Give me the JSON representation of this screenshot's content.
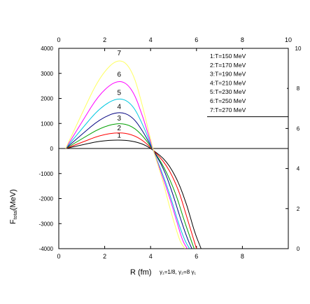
{
  "chart_data": {
    "type": "line",
    "xlabel": "R (fm)",
    "ylabel": "F_total(MeV)",
    "ylabel_main": "F",
    "ylabel_sub": "total",
    "ylabel_unit": "(MeV)",
    "annotation": "γ₁=1/8, γ₂=8 γ₁",
    "xlim": [
      0,
      10
    ],
    "ylim": [
      -4000,
      4000
    ],
    "x_ticks": [
      "0",
      "2",
      "4",
      "6",
      "8",
      "10"
    ],
    "x_ticks_bottom": [
      "0",
      "2",
      "4",
      "6",
      "8"
    ],
    "y_ticks": [
      "4000",
      "3000",
      "2000",
      "1000",
      "0",
      "-1000",
      "-2000",
      "-3000",
      "-4000"
    ],
    "right_ticks": [
      "10",
      "8",
      "6",
      "4",
      "2",
      "0"
    ],
    "grid": false,
    "legend_position": "top-right",
    "series": [
      {
        "name": "1:T=150 MeV",
        "label": "1",
        "color": "#000000",
        "points": [
          [
            0.3,
            0
          ],
          [
            1,
            140
          ],
          [
            1.8,
            300
          ],
          [
            2.6,
            350
          ],
          [
            3.2,
            300
          ],
          [
            3.7,
            170
          ],
          [
            4.1,
            -50
          ],
          [
            4.7,
            -500
          ],
          [
            5.2,
            -1300
          ],
          [
            5.6,
            -2300
          ],
          [
            5.9,
            -3300
          ],
          [
            6.2,
            -4000
          ]
        ]
      },
      {
        "name": "2:T=170 MeV",
        "label": "2",
        "color": "#ff0000",
        "points": [
          [
            0.3,
            0
          ],
          [
            1,
            240
          ],
          [
            1.8,
            530
          ],
          [
            2.6,
            650
          ],
          [
            3.2,
            560
          ],
          [
            3.7,
            300
          ],
          [
            4.1,
            -50
          ],
          [
            4.7,
            -650
          ],
          [
            5.2,
            -1600
          ],
          [
            5.5,
            -2500
          ],
          [
            5.8,
            -3400
          ],
          [
            6.0,
            -4000
          ]
        ]
      },
      {
        "name": "3:T=190 MeV",
        "label": "3",
        "color": "#00a000",
        "points": [
          [
            0.3,
            0
          ],
          [
            1,
            380
          ],
          [
            1.8,
            820
          ],
          [
            2.6,
            1030
          ],
          [
            3.2,
            900
          ],
          [
            3.7,
            470
          ],
          [
            4.1,
            -50
          ],
          [
            4.6,
            -750
          ],
          [
            5.1,
            -1800
          ],
          [
            5.4,
            -2700
          ],
          [
            5.7,
            -3500
          ],
          [
            5.9,
            -4000
          ]
        ]
      },
      {
        "name": "4:T=210 MeV",
        "label": "4",
        "color": "#000080",
        "points": [
          [
            0.3,
            0
          ],
          [
            1,
            560
          ],
          [
            1.8,
            1180
          ],
          [
            2.6,
            1490
          ],
          [
            3.2,
            1290
          ],
          [
            3.7,
            640
          ],
          [
            4.1,
            -50
          ],
          [
            4.6,
            -850
          ],
          [
            5.0,
            -1900
          ],
          [
            5.3,
            -2800
          ],
          [
            5.6,
            -3600
          ],
          [
            5.8,
            -4000
          ]
        ]
      },
      {
        "name": "5:T=230 MeV",
        "label": "5",
        "color": "#00c8e0",
        "points": [
          [
            0.3,
            0
          ],
          [
            1,
            780
          ],
          [
            1.8,
            1640
          ],
          [
            2.6,
            2060
          ],
          [
            3.2,
            1790
          ],
          [
            3.7,
            880
          ],
          [
            4.1,
            -50
          ],
          [
            4.5,
            -950
          ],
          [
            4.9,
            -2000
          ],
          [
            5.2,
            -2950
          ],
          [
            5.5,
            -3700
          ],
          [
            5.7,
            -4000
          ]
        ]
      },
      {
        "name": "6:T=250 MeV",
        "label": "6",
        "color": "#ff00ff",
        "points": [
          [
            0.3,
            0
          ],
          [
            1,
            1050
          ],
          [
            1.8,
            2220
          ],
          [
            2.6,
            2780
          ],
          [
            3.2,
            2420
          ],
          [
            3.7,
            1180
          ],
          [
            4.1,
            -50
          ],
          [
            4.5,
            -1050
          ],
          [
            4.9,
            -2150
          ],
          [
            5.2,
            -3100
          ],
          [
            5.4,
            -3700
          ],
          [
            5.6,
            -4000
          ]
        ]
      },
      {
        "name": "7:T=270 MeV",
        "label": "7",
        "color": "#ffff60",
        "points": [
          [
            0.3,
            0
          ],
          [
            1,
            1380
          ],
          [
            1.8,
            2900
          ],
          [
            2.6,
            3640
          ],
          [
            3.2,
            3170
          ],
          [
            3.7,
            1540
          ],
          [
            4.1,
            -50
          ],
          [
            4.5,
            -1150
          ],
          [
            4.8,
            -2250
          ],
          [
            5.1,
            -3200
          ],
          [
            5.3,
            -3750
          ],
          [
            5.5,
            -4000
          ]
        ]
      }
    ]
  }
}
